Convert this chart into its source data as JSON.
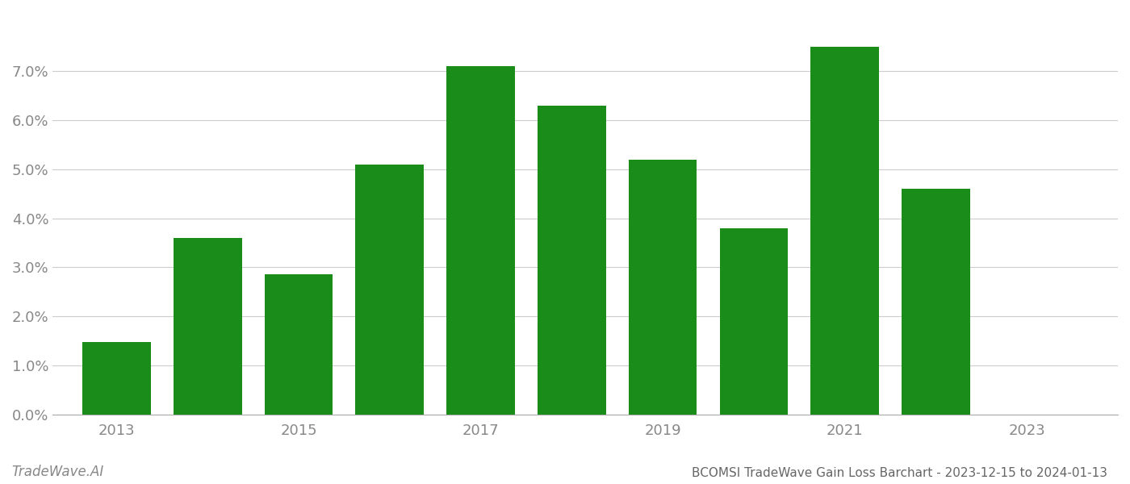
{
  "years": [
    2013,
    2014,
    2015,
    2016,
    2017,
    2018,
    2019,
    2020,
    2021,
    2022
  ],
  "values": [
    0.0148,
    0.036,
    0.0285,
    0.051,
    0.071,
    0.063,
    0.052,
    0.038,
    0.075,
    0.046
  ],
  "bar_color": "#1a8c1a",
  "background_color": "#ffffff",
  "title": "BCOMSI TradeWave Gain Loss Barchart - 2023-12-15 to 2024-01-13",
  "watermark": "TradeWave.AI",
  "ylim": [
    0.0,
    0.082
  ],
  "yticks": [
    0.0,
    0.01,
    0.02,
    0.03,
    0.04,
    0.05,
    0.06,
    0.07
  ],
  "xtick_years": [
    2013,
    2015,
    2017,
    2019,
    2021,
    2023
  ],
  "xlim": [
    2012.3,
    2024.0
  ],
  "grid_color": "#cccccc",
  "axis_color": "#aaaaaa",
  "tick_label_color": "#888888",
  "title_color": "#666666",
  "watermark_color": "#888888",
  "title_fontsize": 11,
  "tick_fontsize": 13,
  "watermark_fontsize": 12
}
